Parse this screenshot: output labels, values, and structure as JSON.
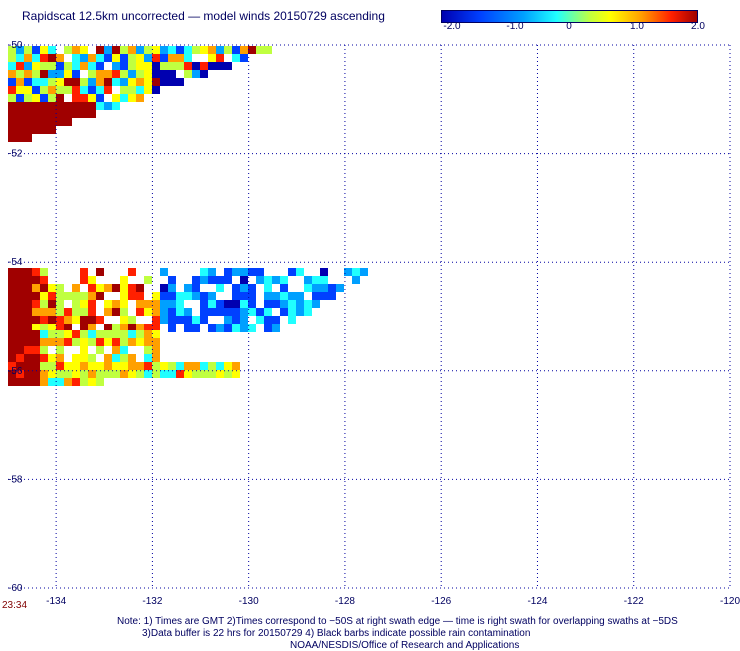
{
  "title": "Rapidscat 12.5km uncorrected — model winds 20150729 ascending",
  "colorbar": {
    "ticks": [
      "-2.0",
      "-1.0",
      "0",
      "1.0",
      "2.0"
    ],
    "tick_values": [
      -2,
      -1,
      0,
      1,
      2
    ],
    "range": [
      -2,
      2
    ],
    "colors": [
      "#0000b0",
      "#0040ff",
      "#00a0ff",
      "#20ffff",
      "#c0ff40",
      "#ffff00",
      "#ffa000",
      "#ff2000",
      "#a00000"
    ]
  },
  "chart_data": {
    "type": "heatmap",
    "x_ticks": [
      "-134",
      "-132",
      "-130",
      "-128",
      "-126",
      "-124",
      "-122",
      "-120"
    ],
    "y_ticks": [
      "-50",
      "-52",
      "-54",
      "-56",
      "-58",
      "-60"
    ],
    "xlim": [
      -135,
      -120
    ],
    "ylim": [
      -60,
      -50
    ],
    "grid": true
  },
  "timestamp": "23:34",
  "notes": [
    "Note: 1) Times are GMT 2)Times correspond to −50S at right swath edge — time is right swath for overlapping swaths at −5DS",
    "3)Data buffer is 22 hrs for 20150729 4) Black barbs indicate possible rain contamination",
    "NOAA/NESDIS/Office of Research and Applications"
  ]
}
